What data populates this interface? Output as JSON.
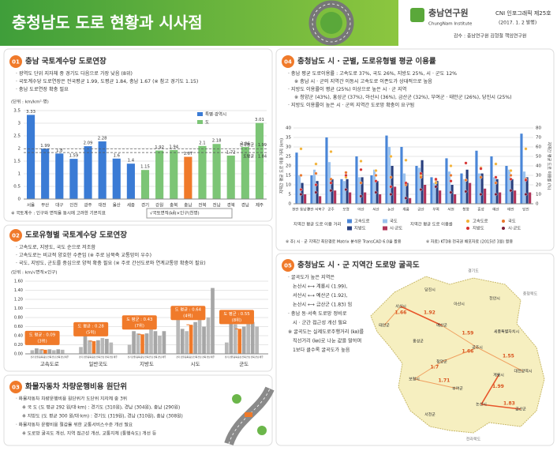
{
  "header": {
    "title": "충청남도 도로 현황과 시사점",
    "org": "충남연구원",
    "org_en": "ChungNam Institute",
    "series": "CNI 인포그래픽 제25호",
    "date": "(2017. 1. 2 발행)",
    "supervisor": "감수 : 충남연구원 김형철 책임연구원"
  },
  "sections": [
    {
      "number": "01",
      "title": "충남 국토계수당 도로연장",
      "lines": [
        "· 광역도 단위 지자체 중 경기도 다음으로 가장 낮음 (8위)",
        "· 국토계수당 도로연장은 전국평균 1.99, 도평균 1.84, 충남 1.67 (※ 참고 경기도 1.15)",
        "· 충남 도로연장 확충 필요"
      ]
    },
    {
      "number": "02",
      "title": "도로유형별 국토계수당 도로연장",
      "lines": [
        "· 고속도로, 지방도, 국도 순으로 저조함",
        "· 고속도로는 비교적 양호한 수준임 (※ 주로 남북축 교통망이 우수)",
        "· 국도, 지방도, 군도를 중심으로 양적 확충 필요 (※ 주로 간선도로와 연계교통망 확충이 필요)"
      ]
    },
    {
      "number": "03",
      "title": "화물자동차 차량운행비용 원단위",
      "lines": [
        "· 화물자동차 차량운행비용 원단위가 도단위 지자체 중 3위",
        "※ 국 도 (도 평균 292 원/대·km) : 경기도 (310원), 경남 (304원), 충남 (290원)",
        "※ 지방도 (도 평균 300 원/대·km) : 경기도 (319원), 경남 (310원), 충남 (308원)",
        "· 화물자동차 운행비용 절감을 위한 교통서비스수준 개선 필요",
        "※ 도로망 굴곡도 개선, 지역 접근성 개선, 교통지체 (통행속도) 개선 등"
      ]
    },
    {
      "number": "04",
      "title": "충청남도 시 · 군별, 도로유형별 평균 이용률",
      "lines": [
        "· 충남 평균 도로이용률 : 고속도로 37%, 국도 26%, 지방도 25%, 시 · 군도 12%",
        "※ 충남 시 · 군의 지역간 이동시 고속도로 이존도가 상대적으로 높음",
        "· 지방도 이용률이 평균 (25%) 이상으로 높은 시 · 군 지역",
        "※ 청양군 (43%), 홍성군 (37%), 아산시 (36%), 금산군 (32%), 부여군 · 태안군 (26%), 당진시 (25%)",
        "· 지방도 이용률이 높은 시 · 군의 지역간 도로망 확충이 요구됨"
      ]
    },
    {
      "number": "05",
      "title": "충청남도 시 · 군 지역간 도로망 굴곡도",
      "lines": [
        "· 굴곡도가 높은 지역은",
        "논산시 ⟷ 계룡시 (1.99),",
        "서산시 ⟷ 예산군 (1.92),",
        "논산시 ⟷ 금산군 (1.83) 임",
        "· 충남 동·서축 도로망 정비로",
        "시 · 군간 접근성 개선 필요",
        "※ 굴곡도는 실제도로주행거리 (㎞)를",
        "직선거리 (㎞)로 나눈 값을 말하며",
        "1보다 클수록 굴곡도가 높음"
      ]
    }
  ],
  "chart_data": [
    {
      "type": "bar",
      "unit": "(단위 : km/km²·명)",
      "categories": [
        "서울",
        "부산",
        "대구",
        "인천",
        "광주",
        "대전",
        "울산",
        "세종",
        "경기",
        "강원",
        "충북",
        "충남",
        "전북",
        "전남",
        "경북",
        "경남",
        "제주"
      ],
      "values": [
        3.33,
        1.99,
        1.8,
        1.59,
        2.09,
        2.28,
        1.6,
        1.4,
        1.15,
        1.92,
        1.94,
        1.67,
        2.1,
        2.18,
        1.72,
        2.06,
        3.01
      ],
      "colors": [
        "#3a7bd5",
        "#3a7bd5",
        "#3a7bd5",
        "#3a7bd5",
        "#3a7bd5",
        "#3a7bd5",
        "#3a7bd5",
        "#3a7bd5",
        "#7cc576",
        "#7cc576",
        "#7cc576",
        "#f07a2a",
        "#7cc576",
        "#7cc576",
        "#7cc576",
        "#7cc576",
        "#7cc576"
      ],
      "legend": [
        {
          "name": "특별·광역시",
          "color": "#3a7bd5"
        },
        {
          "name": "도",
          "color": "#7cc576"
        }
      ],
      "reference_lines": [
        {
          "label": "전국평균 : 1.99",
          "value": 1.99
        },
        {
          "label": "도평균 : 1.84",
          "value": 1.84
        }
      ],
      "ylim": [
        0,
        3.5
      ],
      "yticks": [
        0,
        0.5,
        1,
        1.5,
        2,
        2.5,
        3,
        3.5
      ],
      "grid": true,
      "notes": [
        "※ 국토계수 : 인구와 면적을 동시에 고려한 기본지표",
        "√국토면적(㎢)×인구(천명)"
      ]
    },
    {
      "type": "grouped-bar",
      "unit": "(단위 : km/√면적×인구)",
      "categories": [
        "고속도로",
        "일반국도",
        "지방도",
        "시도",
        "군도"
      ],
      "series": [
        {
          "name": "경기",
          "color": "#b8b8b8",
          "values": [
            0.08,
            0.15,
            0.2,
            0.95,
            0.25
          ]
        },
        {
          "name": "강원",
          "color": "#a6a6a6",
          "values": [
            0.12,
            0.45,
            0.5,
            0.55,
            0.9
          ]
        },
        {
          "name": "충북",
          "color": "#b8b8b8",
          "values": [
            0.1,
            0.3,
            0.45,
            0.5,
            0.65
          ]
        },
        {
          "name": "충남",
          "color": "#f07a2a",
          "values": [
            0.09,
            0.28,
            0.43,
            0.64,
            0.55
          ]
        },
        {
          "name": "전북",
          "color": "#a6a6a6",
          "values": [
            0.1,
            0.3,
            0.45,
            0.7,
            0.6
          ]
        },
        {
          "name": "전남",
          "color": "#b8b8b8",
          "values": [
            0.08,
            0.35,
            0.55,
            0.75,
            0.7
          ]
        },
        {
          "name": "경북",
          "color": "#a6a6a6",
          "values": [
            0.1,
            0.33,
            0.5,
            0.6,
            0.7
          ]
        },
        {
          "name": "경남",
          "color": "#b8b8b8",
          "values": [
            0.09,
            0.25,
            0.4,
            0.8,
            0.6
          ]
        },
        {
          "name": "제주",
          "color": "#a6a6a6",
          "values": [
            0,
            0,
            0.5,
            1.45,
            0
          ]
        }
      ],
      "annotations": [
        {
          "label": "도 평균 : 0.09",
          "value": 0.09,
          "rank": "(3위)"
        },
        {
          "label": "도 평균 : 0.28",
          "value": 0.28,
          "rank": "(5위)"
        },
        {
          "label": "도 평균 : 0.43",
          "value": 0.43,
          "rank": "(7위)"
        },
        {
          "label": "도 평균 : 0.64",
          "value": 0.64,
          "rank": "(4위)"
        },
        {
          "label": "도 평균 : 0.55",
          "value": 0.55,
          "rank": "(8위)"
        }
      ],
      "ylim": [
        0,
        1.6
      ],
      "yticks": [
        {
          "value": 0,
          "label": "0.00"
        },
        {
          "value": 0.2,
          "label": "0.20"
        },
        {
          "value": 0.4,
          "label": "0.40"
        },
        {
          "value": 0.6,
          "label": "0.60"
        },
        {
          "value": 0.8,
          "label": "0.80"
        },
        {
          "value": 1,
          "label": "1.00"
        },
        {
          "value": 1.2,
          "label": "1.20"
        },
        {
          "value": 1.4,
          "label": "1.40"
        },
        {
          "value": 1.6,
          "label": "1.60"
        }
      ],
      "grid": true
    },
    {
      "type": "bar-point",
      "categories": [
        "천안 동남구",
        "천안 서북구",
        "공주",
        "보령",
        "아산",
        "서산",
        "논산",
        "계룡",
        "금산",
        "부여",
        "서천",
        "청양",
        "홍성",
        "예산",
        "태안",
        "당진"
      ],
      "y_label": "지역간 평균 도로 이용 거리 (km)",
      "y2_label": "지역간 평균 도로 이용률 (%)",
      "legend_titles": [
        "지역간 평균 도로 이용 거리",
        "지역간 평균 도로 이용률"
      ],
      "series": [
        {
          "name": "고속도로",
          "color": "#4a86d8",
          "values": [
            27,
            15,
            35,
            13,
            25,
            15,
            36,
            30,
            20,
            14,
            24,
            16,
            28,
            25,
            20,
            37
          ]
        },
        {
          "name": "국도",
          "color": "#9cc3ee",
          "values": [
            15,
            18,
            22,
            12,
            14,
            18,
            30,
            16,
            19,
            11,
            17,
            13,
            16,
            14,
            18,
            17
          ]
        },
        {
          "name": "지방도",
          "color": "#283f7e",
          "values": [
            11,
            12,
            13,
            13,
            14,
            12,
            20,
            11,
            23,
            12,
            10,
            18,
            16,
            13,
            13,
            14
          ]
        },
        {
          "name": "시·군도",
          "color": "#b0345a",
          "values": [
            5,
            4,
            7,
            6,
            6,
            5,
            9,
            3,
            10,
            7,
            5,
            11,
            8,
            6,
            7,
            6
          ]
        },
        {
          "name": "고속도로",
          "color": "#f2b134",
          "axis": "y2",
          "values": [
            58,
            42,
            55,
            28,
            45,
            35,
            50,
            46,
            30,
            22,
            40,
            25,
            38,
            42,
            35,
            58
          ]
        },
        {
          "name": "국도",
          "color": "#e8762b",
          "axis": "y2",
          "values": [
            30,
            32,
            26,
            33,
            22,
            30,
            28,
            20,
            28,
            25,
            30,
            25,
            28,
            22,
            30,
            26
          ]
        },
        {
          "name": "지방도",
          "color": "#d62f2f",
          "axis": "y2",
          "values": [
            15,
            20,
            22,
            30,
            36,
            24,
            18,
            22,
            32,
            26,
            24,
            43,
            37,
            28,
            26,
            25
          ]
        },
        {
          "name": "시·군도",
          "color": "#7a1e3a",
          "axis": "y2",
          "values": [
            10,
            12,
            14,
            15,
            8,
            12,
            10,
            6,
            15,
            18,
            12,
            13,
            10,
            10,
            14,
            10
          ]
        }
      ],
      "ylim": [
        0,
        40
      ],
      "yticks": [
        0,
        5,
        10,
        15,
        20,
        25,
        30,
        35,
        40
      ],
      "y2lim": [
        0,
        80
      ],
      "y2ticks": [
        0,
        10,
        20,
        30,
        40,
        50,
        60,
        70,
        80
      ],
      "grid": true,
      "notes": [
        "※ 주) 시 · 군 지역간 최단경로 Matrix 분석은 TransCAD 6.0을 활용",
        "※ 자료) KTDB 전국권 배포자료 (2015년 3월) 활용"
      ]
    }
  ],
  "map": {
    "places": [
      "당진시",
      "서산시",
      "아산시",
      "천안시",
      "태안군",
      "예산군",
      "홍성군",
      "공주시",
      "청양군",
      "세종특별자치시",
      "보령시",
      "부여군",
      "논산시",
      "계룡시",
      "대전광역시",
      "금산군",
      "서천군"
    ],
    "neighbors": [
      "경기도",
      "충청북도",
      "전라북도"
    ],
    "edges": [
      {
        "value": 1.66
      },
      {
        "value": 1.92
      },
      {
        "value": 1.59
      },
      {
        "value": 1.66
      },
      {
        "value": 1.55
      },
      {
        "value": 1.7
      },
      {
        "value": 1.71
      },
      {
        "value": 1.99
      },
      {
        "value": 1.83
      }
    ]
  }
}
